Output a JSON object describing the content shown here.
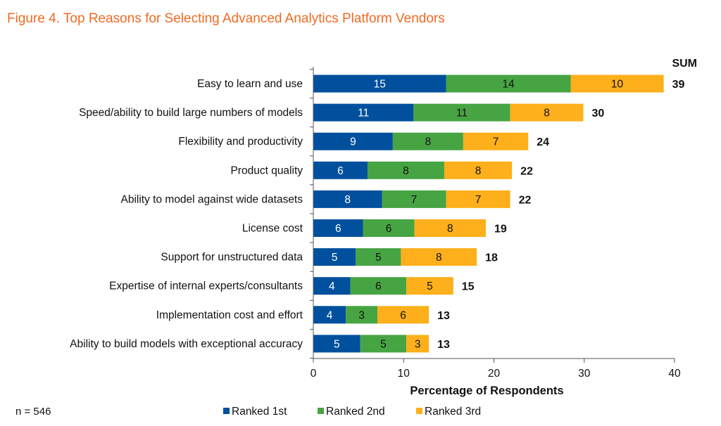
{
  "title": "Figure 4. Top Reasons for Selecting Advanced Analytics Platform Vendors",
  "note": "n = 546",
  "chart_data": {
    "type": "bar",
    "orientation": "horizontal",
    "stacked": true,
    "categories": [
      "Easy to learn and use",
      "Speed/ability to build large numbers of models",
      "Flexibility and productivity",
      "Product quality",
      "Ability to model against wide datasets",
      "License cost",
      "Support for unstructured data",
      "Expertise of internal experts/consultants",
      "Implementation cost and effort",
      "Ability to build models with exceptional accuracy"
    ],
    "series": [
      {
        "name": "Ranked 1st",
        "color": "#00509d",
        "values": [
          14.7,
          11.1,
          8.8,
          6.0,
          7.6,
          5.5,
          4.7,
          4.1,
          3.6,
          5.2
        ],
        "labels": [
          "15",
          "11",
          "9",
          "6",
          "8",
          "6",
          "5",
          "4",
          "4",
          "5"
        ]
      },
      {
        "name": "Ranked 2nd",
        "color": "#47a443",
        "values": [
          13.8,
          10.7,
          7.8,
          8.5,
          7.1,
          5.7,
          5.0,
          6.2,
          3.5,
          5.1
        ],
        "labels": [
          "14",
          "11",
          "8",
          "8",
          "7",
          "6",
          "5",
          "6",
          "3",
          "5"
        ]
      },
      {
        "name": "Ranked 3rd",
        "color": "#fdb01b",
        "values": [
          10.3,
          8.1,
          7.2,
          7.5,
          7.1,
          7.9,
          8.4,
          5.2,
          5.7,
          2.5
        ],
        "labels": [
          "10",
          "8",
          "7",
          "8",
          "7",
          "8",
          "8",
          "5",
          "6",
          "3"
        ]
      }
    ],
    "sum_header": "SUM",
    "sums": [
      "39",
      "30",
      "24",
      "22",
      "22",
      "19",
      "18",
      "15",
      "13",
      "13"
    ],
    "xlabel": "Percentage of Respondents",
    "xlim": [
      0,
      40
    ],
    "xticks": [
      "0",
      "10",
      "20",
      "30",
      "40"
    ],
    "grid": false,
    "legend_placement": "bottom"
  }
}
